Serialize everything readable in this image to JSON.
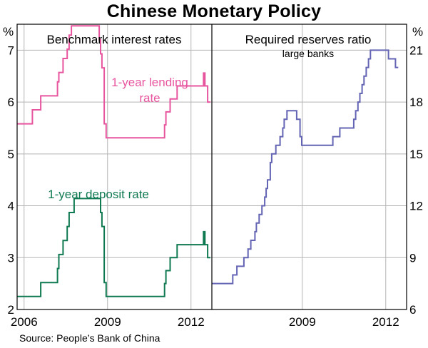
{
  "title": "Chinese Monetary Policy",
  "source": "Source: People’s Bank of China",
  "colors": {
    "lending": "#e8559f",
    "deposit": "#0f7a52",
    "rrr": "#6464b4",
    "grid": "#b5b5b5"
  },
  "chart_data": [
    {
      "type": "line",
      "title": "Benchmark interest rates",
      "ylabel": "%",
      "ylim": [
        2,
        7.5
      ],
      "yticks": [
        2,
        3,
        4,
        5,
        6,
        7
      ],
      "xlim": [
        2005.75,
        2012.75
      ],
      "xticks": [
        2006,
        2009,
        2012
      ],
      "grid": true,
      "series": [
        {
          "name": "1-year lending rate",
          "x": [
            2005.75,
            2006.3,
            2006.6,
            2007.2,
            2007.25,
            2007.4,
            2007.55,
            2007.62,
            2007.7,
            2007.8,
            2007.95,
            2008.7,
            2008.75,
            2008.8,
            2008.88,
            2008.95,
            2010.8,
            2011.05,
            2011.1,
            2011.25,
            2011.5,
            2012.45,
            2012.5,
            2012.6
          ],
          "values": [
            5.58,
            5.85,
            6.12,
            6.39,
            6.57,
            6.84,
            7.02,
            7.29,
            7.47,
            7.47,
            7.47,
            7.2,
            6.93,
            6.66,
            5.58,
            5.31,
            5.31,
            5.56,
            5.81,
            6.06,
            6.31,
            6.56,
            6.31,
            6.0
          ],
          "label_lines": [
            "1-year lending",
            "rate"
          ]
        },
        {
          "name": "1-year deposit rate",
          "x": [
            2005.75,
            2006.6,
            2007.2,
            2007.25,
            2007.4,
            2007.55,
            2007.62,
            2007.7,
            2007.8,
            2007.95,
            2008.7,
            2008.75,
            2008.8,
            2008.88,
            2008.95,
            2010.8,
            2011.05,
            2011.1,
            2011.25,
            2011.5,
            2012.45,
            2012.5,
            2012.6
          ],
          "values": [
            2.25,
            2.52,
            2.79,
            3.06,
            3.33,
            3.6,
            3.87,
            3.87,
            4.14,
            4.14,
            4.14,
            3.87,
            3.6,
            2.52,
            2.25,
            2.25,
            2.5,
            2.75,
            3.0,
            3.25,
            3.5,
            3.25,
            3.0
          ],
          "label_lines": [
            "1-year deposit rate"
          ]
        }
      ]
    },
    {
      "type": "line",
      "title": "Required reserves ratio",
      "subtitle": "large banks",
      "ylabel": "%",
      "ylim": [
        6,
        22.5
      ],
      "yticks": [
        6,
        9,
        12,
        15,
        18,
        21
      ],
      "xlim": [
        2005.75,
        2012.75
      ],
      "xticks": [
        2009,
        2012
      ],
      "grid": true,
      "series": [
        {
          "name": "",
          "x": [
            2005.75,
            2006.5,
            2006.65,
            2006.9,
            2007.05,
            2007.15,
            2007.3,
            2007.35,
            2007.45,
            2007.55,
            2007.65,
            2007.7,
            2007.75,
            2007.85,
            2007.9,
            2008.05,
            2008.2,
            2008.3,
            2008.35,
            2008.45,
            2008.7,
            2008.8,
            2008.92,
            2008.98,
            2010.0,
            2010.1,
            2010.35,
            2010.85,
            2010.92,
            2011.0,
            2011.07,
            2011.15,
            2011.22,
            2011.3,
            2011.38,
            2011.45,
            2011.9,
            2012.1,
            2012.35
          ],
          "values": [
            7.5,
            8.0,
            8.5,
            9.0,
            9.5,
            10.0,
            10.5,
            11.0,
            11.5,
            12.0,
            12.5,
            13.0,
            13.5,
            14.5,
            15.0,
            15.5,
            16.0,
            16.5,
            17.0,
            17.5,
            17.5,
            17.0,
            16.0,
            15.5,
            15.5,
            16.0,
            16.5,
            17.0,
            17.5,
            18.0,
            18.5,
            19.0,
            19.5,
            20.0,
            20.5,
            21.0,
            21.0,
            20.5,
            20.0
          ],
          "label_lines": []
        }
      ]
    }
  ]
}
